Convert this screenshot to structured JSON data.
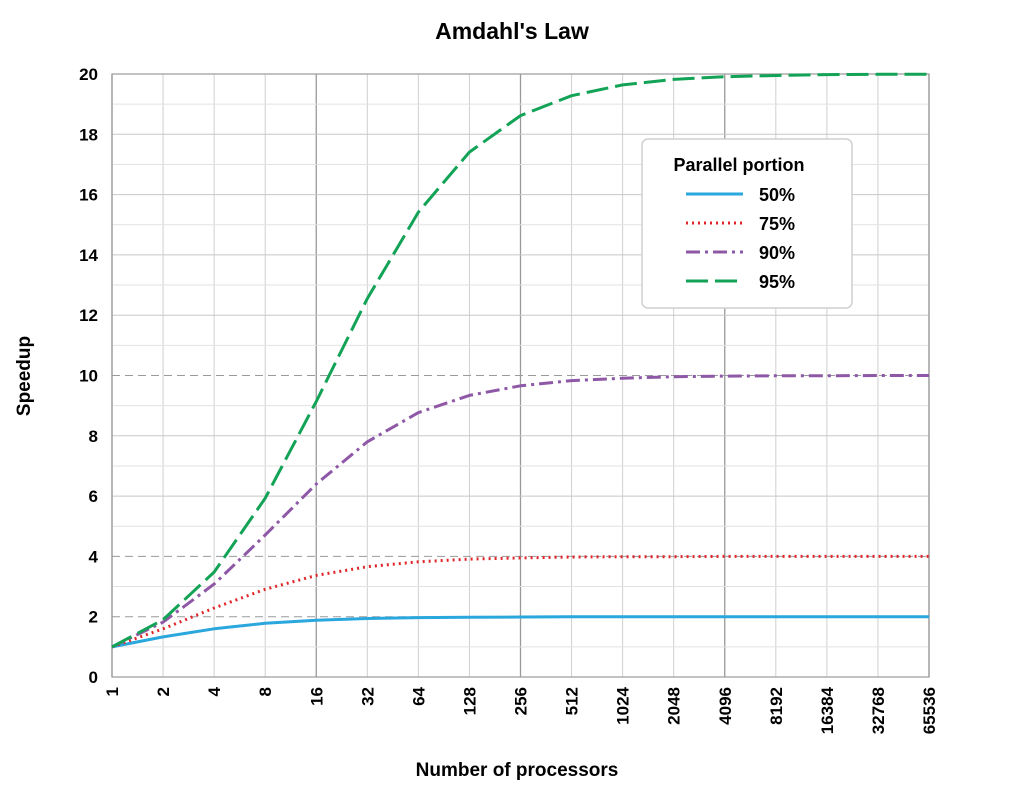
{
  "chart_data": {
    "type": "line",
    "title": "Amdahl's Law",
    "xlabel": "Number of processors",
    "ylabel": "Speedup",
    "x_scale": "log2",
    "x": [
      1,
      2,
      4,
      8,
      16,
      32,
      64,
      128,
      256,
      512,
      1024,
      2048,
      4096,
      8192,
      16384,
      32768,
      65536
    ],
    "x_tick_labels": [
      "1",
      "2",
      "4",
      "8",
      "16",
      "32",
      "64",
      "128",
      "256",
      "512",
      "1024",
      "2048",
      "4096",
      "8192",
      "16384",
      "32768",
      "65536"
    ],
    "y_ticks": [
      0,
      2,
      4,
      6,
      8,
      10,
      12,
      14,
      16,
      18,
      20
    ],
    "ylim": [
      0,
      20
    ],
    "grid": true,
    "legend": {
      "title": "Parallel portion",
      "placement": "top-right"
    },
    "series": [
      {
        "name": "50%",
        "color": "#2aa7dc",
        "style": "solid",
        "values": [
          1.0,
          1.33,
          1.6,
          1.78,
          1.88,
          1.94,
          1.97,
          1.98,
          1.99,
          2.0,
          2.0,
          2.0,
          2.0,
          2.0,
          2.0,
          2.0,
          2.0
        ]
      },
      {
        "name": "75%",
        "color": "#e0262a",
        "style": "dotted",
        "values": [
          1.0,
          1.6,
          2.29,
          2.91,
          3.37,
          3.66,
          3.82,
          3.91,
          3.95,
          3.98,
          3.99,
          3.99,
          4.0,
          4.0,
          4.0,
          4.0,
          4.0
        ]
      },
      {
        "name": "90%",
        "color": "#8e58a6",
        "style": "dashdot",
        "values": [
          1.0,
          1.82,
          3.08,
          4.71,
          6.4,
          7.8,
          8.77,
          9.34,
          9.66,
          9.83,
          9.91,
          9.96,
          9.98,
          9.99,
          9.99,
          10.0,
          10.0
        ]
      },
      {
        "name": "95%",
        "color": "#13a356",
        "style": "dashed",
        "values": [
          1.0,
          1.9,
          3.48,
          5.93,
          9.14,
          12.55,
          15.42,
          17.41,
          18.62,
          19.28,
          19.64,
          19.82,
          19.91,
          19.95,
          19.98,
          19.99,
          19.99
        ]
      }
    ]
  }
}
